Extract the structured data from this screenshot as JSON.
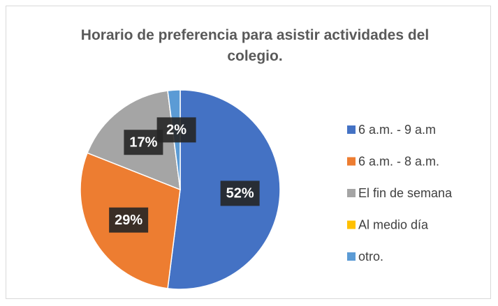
{
  "chart_data": {
    "type": "pie",
    "title": "Horario de preferencia para asistir actividades del  colegio.",
    "categories": [
      "6 a.m. - 9 a.m",
      "6 a.m. - 8 a.m.",
      "El fin de semana",
      "Al medio día",
      "otro."
    ],
    "values": [
      52,
      29,
      17,
      0,
      2
    ],
    "value_labels": [
      "52%",
      "29%",
      "17%",
      null,
      "2%"
    ],
    "colors": [
      "#4472c4",
      "#ed7d31",
      "#a5a5a5",
      "#ffc000",
      "#5b9bd5"
    ],
    "legend": "right"
  }
}
